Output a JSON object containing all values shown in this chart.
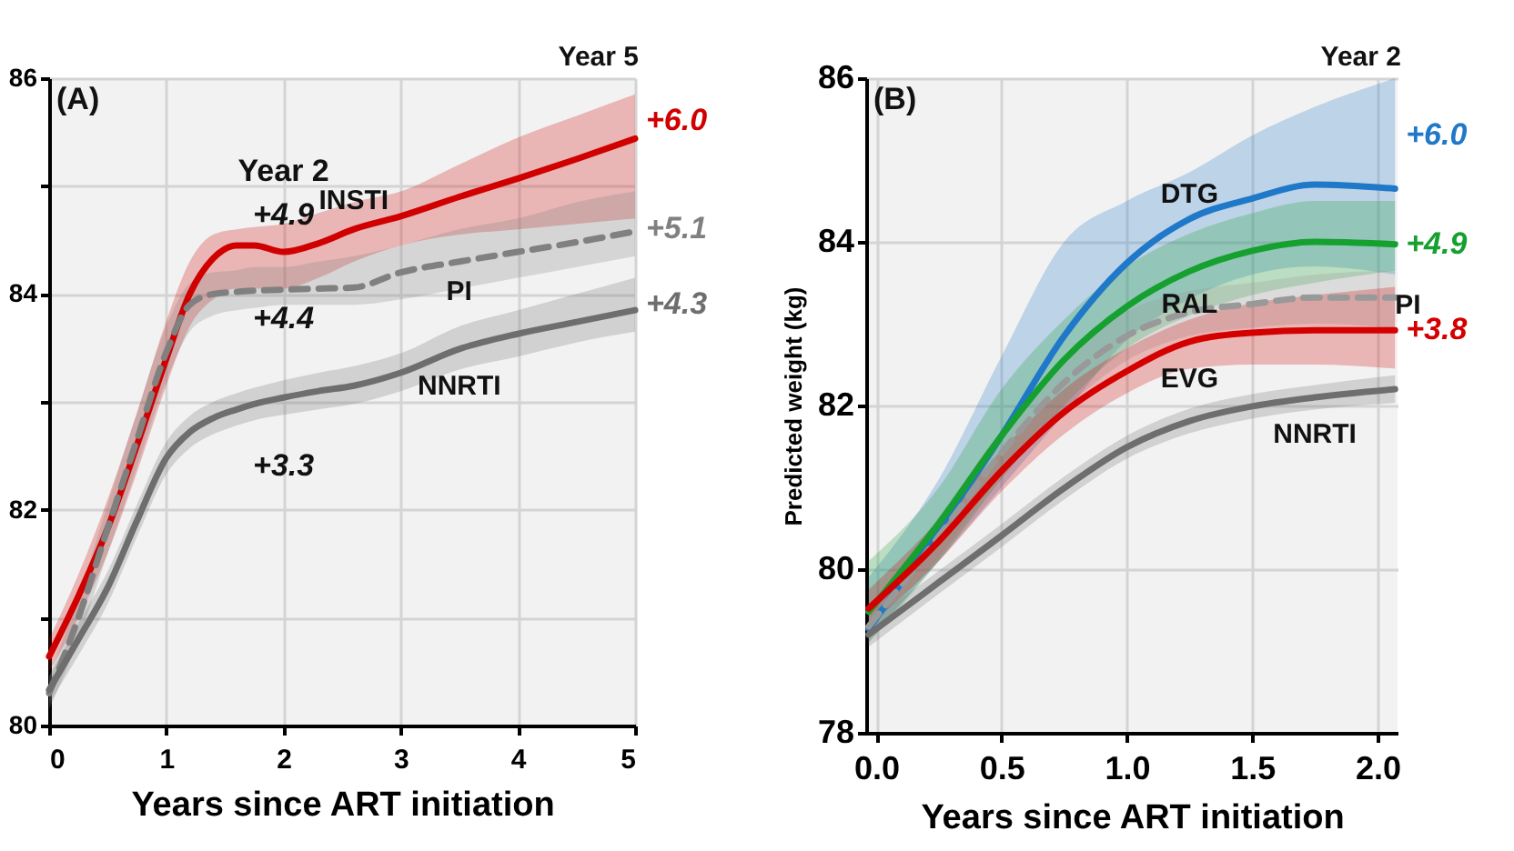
{
  "chart_data": [
    {
      "type": "line",
      "title": "(A)",
      "xlabel": "Years since ART initiation",
      "x": [
        0,
        0.25,
        0.5,
        0.75,
        1,
        1.2,
        1.4,
        1.6,
        1.75,
        2,
        2.3,
        2.6,
        3,
        3.5,
        4,
        4.5,
        5
      ],
      "xlim": [
        0,
        5
      ],
      "xticks": [
        0,
        1,
        2,
        3,
        4,
        5
      ],
      "ylim": [
        80,
        86
      ],
      "yticks": [
        80,
        {
          "value": 81,
          "label": null
        },
        82,
        {
          "value": 83,
          "label": null
        },
        84,
        {
          "value": 85,
          "label": null
        },
        86
      ],
      "grid": true,
      "series": [
        {
          "name": "INSTI",
          "color": "#d00000",
          "values": [
            80.64,
            81.2,
            81.83,
            82.6,
            83.4,
            84.0,
            84.33,
            84.45,
            84.45,
            84.39,
            84.47,
            84.6,
            84.72,
            84.9,
            85.07,
            85.25,
            85.44
          ],
          "lower": [
            80.5,
            81.0,
            81.6,
            82.35,
            83.15,
            83.7,
            83.95,
            84.05,
            84.05,
            84.05,
            84.15,
            84.3,
            84.45,
            84.55,
            84.6,
            84.65,
            84.7
          ],
          "upper": [
            80.8,
            81.4,
            82.1,
            82.9,
            83.75,
            84.3,
            84.55,
            84.6,
            84.62,
            84.65,
            84.75,
            84.85,
            84.95,
            85.2,
            85.45,
            85.65,
            85.85
          ]
        },
        {
          "name": "PI",
          "color": "#808080",
          "line_style": "dashed",
          "values": [
            80.3,
            81.0,
            81.83,
            82.65,
            83.46,
            83.9,
            84.0,
            84.02,
            84.03,
            84.04,
            84.05,
            84.06,
            84.2,
            84.3,
            84.39,
            84.48,
            84.58
          ],
          "lower": [
            80.15,
            80.8,
            81.6,
            82.4,
            83.2,
            83.65,
            83.8,
            83.85,
            83.87,
            83.9,
            83.9,
            83.9,
            83.95,
            84.05,
            84.15,
            84.25,
            84.35
          ],
          "upper": [
            80.45,
            81.2,
            82.05,
            82.9,
            83.7,
            84.1,
            84.2,
            84.22,
            84.25,
            84.25,
            84.3,
            84.35,
            84.45,
            84.6,
            84.7,
            84.85,
            84.95
          ]
        },
        {
          "name": "NNRTI",
          "color": "#6e6e6e",
          "values": [
            80.33,
            80.8,
            81.28,
            81.9,
            82.48,
            82.72,
            82.85,
            82.93,
            82.98,
            83.04,
            83.1,
            83.15,
            83.27,
            83.49,
            83.63,
            83.74,
            83.85
          ],
          "lower": [
            80.2,
            80.65,
            81.13,
            81.75,
            82.33,
            82.57,
            82.7,
            82.78,
            82.83,
            82.88,
            82.93,
            82.98,
            83.1,
            83.3,
            83.42,
            83.55,
            83.65
          ],
          "upper": [
            80.45,
            80.95,
            81.43,
            82.05,
            82.63,
            82.87,
            83.0,
            83.08,
            83.13,
            83.2,
            83.27,
            83.33,
            83.45,
            83.7,
            83.85,
            84.0,
            84.15
          ]
        }
      ],
      "annotations": [
        "Year 5",
        {
          "text": "Year 2",
          "x": 2,
          "y": 84.39
        },
        {
          "text": "+4.9",
          "x": 2,
          "y": 84.39
        },
        {
          "text": "+4.4",
          "x": 2,
          "y": 84.04
        },
        {
          "text": "+3.3",
          "x": 2,
          "y": 83.04
        },
        {
          "text": "+6.0",
          "x": 5,
          "y": 85.6
        },
        {
          "text": "+5.1",
          "x": 5,
          "y": 84.6
        },
        {
          "text": "+4.3",
          "x": 5,
          "y": 83.9
        }
      ]
    },
    {
      "type": "line",
      "title": "(B)",
      "xlabel": "Years since ART initiation",
      "ylabel": "Predicted weight (kg)",
      "x": [
        -0.03,
        0.25,
        0.5,
        0.75,
        1,
        1.25,
        1.5,
        1.75,
        2.07
      ],
      "xlim": [
        -0.04,
        2.08
      ],
      "xticks": [
        {
          "value": 0,
          "label": "0.0"
        },
        {
          "value": 0.5,
          "label": "0.5"
        },
        {
          "value": 1,
          "label": "1.0"
        },
        {
          "value": 1.5,
          "label": "1.5"
        },
        {
          "value": 2,
          "label": "2.0"
        }
      ],
      "ylim": [
        78,
        86
      ],
      "yticks": [
        78,
        80,
        82,
        84,
        86
      ],
      "grid": true,
      "series": [
        {
          "name": "DTG",
          "color": "#1f78c8",
          "values": [
            79.27,
            80.49,
            81.63,
            82.85,
            83.74,
            84.28,
            84.53,
            84.7,
            84.65
          ],
          "lower": [
            79.15,
            80.1,
            81.0,
            81.9,
            82.8,
            83.3,
            83.6,
            83.7,
            83.6
          ],
          "upper": [
            79.9,
            81.1,
            82.6,
            84.0,
            84.5,
            84.85,
            85.3,
            85.65,
            86.0
          ]
        },
        {
          "name": "RAL",
          "color": "#16a030",
          "values": [
            79.48,
            80.56,
            81.63,
            82.56,
            83.21,
            83.64,
            83.89,
            84.0,
            83.97
          ],
          "lower": [
            79.1,
            80.1,
            81.1,
            82.0,
            82.7,
            83.1,
            83.35,
            83.5,
            83.65
          ],
          "upper": [
            80.1,
            81.0,
            82.2,
            83.05,
            83.7,
            84.1,
            84.35,
            84.5,
            84.5
          ]
        },
        {
          "name": "PI",
          "color": "#999999",
          "line_style": "dashed",
          "values": [
            79.3,
            80.4,
            81.42,
            82.28,
            82.85,
            83.14,
            83.24,
            83.32,
            83.32
          ],
          "lower": [
            79.1,
            80.15,
            81.15,
            81.95,
            82.55,
            82.85,
            82.95,
            83.0,
            82.95
          ],
          "upper": [
            79.5,
            80.65,
            81.7,
            82.6,
            83.15,
            83.4,
            83.5,
            83.6,
            83.65
          ]
        },
        {
          "name": "EVG",
          "color": "#d40000",
          "values": [
            79.52,
            80.34,
            81.2,
            81.92,
            82.42,
            82.78,
            82.89,
            82.92,
            82.92
          ],
          "lower": [
            79.3,
            80.1,
            80.95,
            81.65,
            82.15,
            82.45,
            82.5,
            82.5,
            82.45
          ],
          "upper": [
            79.75,
            80.6,
            81.45,
            82.2,
            82.7,
            83.05,
            83.25,
            83.35,
            83.45
          ]
        },
        {
          "name": "NNRTI",
          "color": "#6e6e6e",
          "values": [
            79.2,
            79.84,
            80.41,
            80.99,
            81.49,
            81.81,
            81.99,
            82.1,
            82.2
          ],
          "lower": [
            79.05,
            79.7,
            80.27,
            80.85,
            81.35,
            81.66,
            81.84,
            81.95,
            82.03
          ],
          "upper": [
            79.35,
            79.98,
            80.55,
            81.13,
            81.63,
            81.96,
            82.14,
            82.25,
            82.37
          ]
        }
      ],
      "annotations": [
        "Year 2",
        {
          "text": "+6.0",
          "x": 2.07,
          "y": 85.3
        },
        {
          "text": "+4.9",
          "x": 2.07,
          "y": 83.97
        },
        {
          "text": "+3.8",
          "x": 2.07,
          "y": 82.92
        }
      ]
    }
  ]
}
